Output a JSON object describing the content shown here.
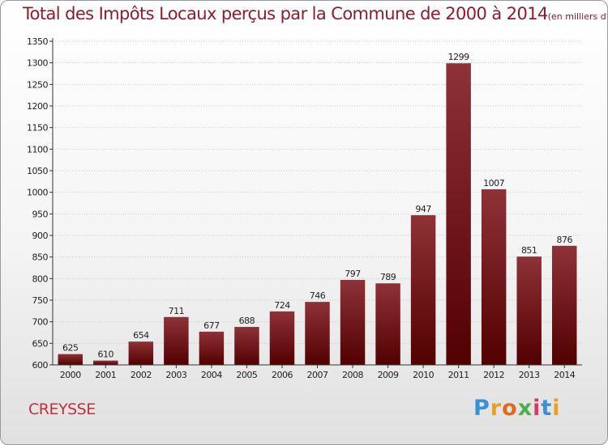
{
  "chart_data": {
    "type": "bar",
    "title": "Total des Impôts Locaux perçus par la Commune de 2000 à 2014",
    "title_unit": "(en milliers d'€)",
    "categories": [
      "2000",
      "2001",
      "2002",
      "2003",
      "2004",
      "2005",
      "2006",
      "2007",
      "2008",
      "2009",
      "2010",
      "2011",
      "2012",
      "2013",
      "2014"
    ],
    "values": [
      625,
      610,
      654,
      711,
      677,
      688,
      724,
      746,
      797,
      789,
      947,
      1299,
      1007,
      851,
      876
    ],
    "data_labels": [
      "625",
      "610",
      "654",
      "711",
      "677",
      "688",
      "724",
      "746",
      "797",
      "789",
      "947",
      "1299",
      "1007",
      "851",
      "876"
    ],
    "xlabel": "",
    "ylabel": "",
    "ylim": [
      600,
      1350
    ],
    "yticks": [
      600,
      650,
      700,
      750,
      800,
      850,
      900,
      950,
      1000,
      1050,
      1100,
      1150,
      1200,
      1250,
      1300,
      1350
    ],
    "grid": true,
    "colors": {
      "bar_top": "#8e3238",
      "bar_bottom": "#520000",
      "title": "#8a1e2e",
      "grid": "#c8c8c8"
    }
  },
  "footer": {
    "commune": "CREYSSE",
    "brand": {
      "letters": [
        "P",
        "r",
        "o",
        "x",
        "i",
        "t",
        "i"
      ],
      "colors": [
        "#3a8fd6",
        "#e8a020",
        "#e06a1f",
        "#4cae4c",
        "#d63a6a",
        "#3a8fd6",
        "#e8a020"
      ]
    }
  }
}
